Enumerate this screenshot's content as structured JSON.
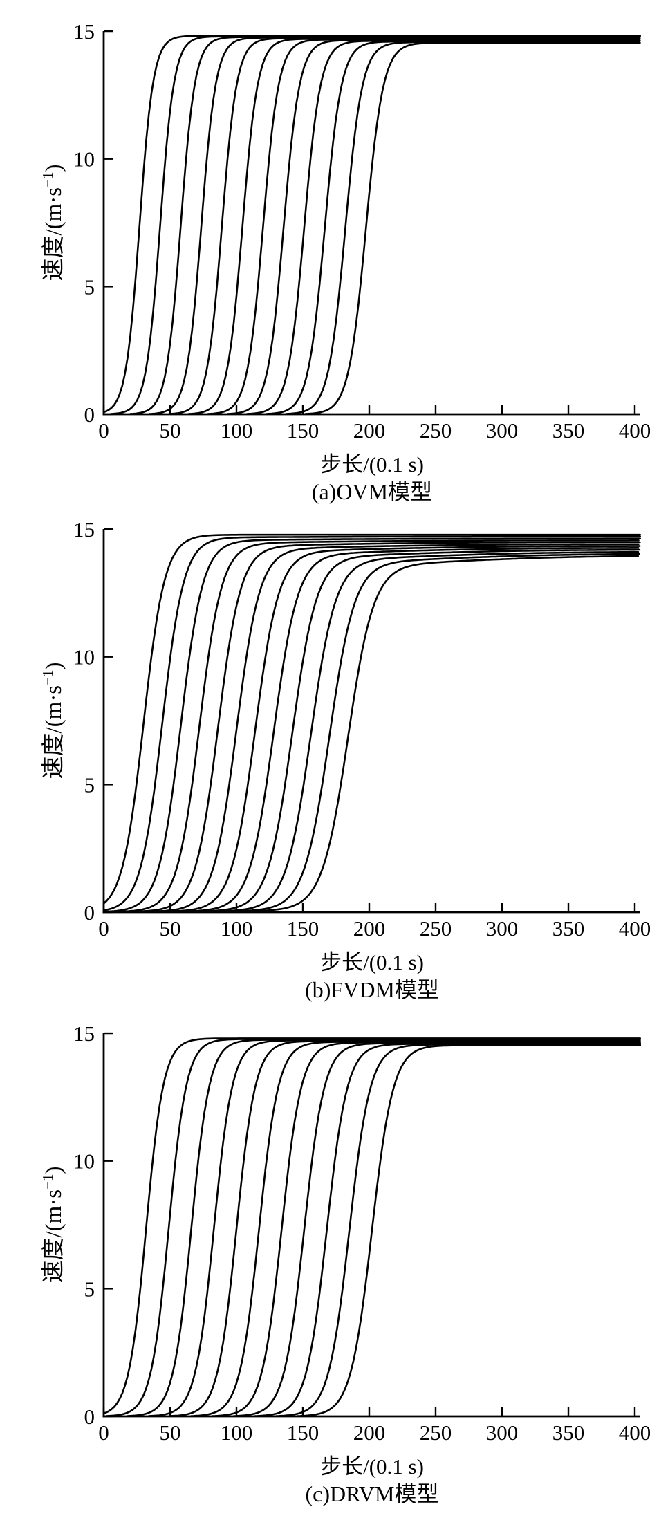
{
  "figure": {
    "background": "#ffffff",
    "n_subplots": 3,
    "line_color": "#000000",
    "axis_color": "#000000"
  },
  "chart_data": [
    {
      "type": "line",
      "caption": "(a)OVM模型",
      "model": "OVM",
      "xlabel": "步长/(0.1 s)",
      "ylabel": "速度/(m·s⁻¹)",
      "ylabel_parts": {
        "pre": "速度/(m·s",
        "sup": "−1",
        "post": ")"
      },
      "xlim": [
        0,
        400
      ],
      "ylim": [
        0,
        15
      ],
      "xticks": [
        0,
        50,
        100,
        150,
        200,
        250,
        300,
        350,
        400
      ],
      "yticks": [
        0,
        5,
        10,
        15
      ],
      "legend": "none",
      "grid": false,
      "n_curves": 12,
      "curve_model": "logistic",
      "terminal_velocity_range": [
        14.55,
        14.82
      ],
      "curves": [
        {
          "center": 27.0,
          "tau": 5.2,
          "plateau": 14.82
        },
        {
          "center": 42.5,
          "tau": 5.32,
          "plateau": 14.795
        },
        {
          "center": 58.0,
          "tau": 5.44,
          "plateau": 14.77
        },
        {
          "center": 73.5,
          "tau": 5.56,
          "plateau": 14.745
        },
        {
          "center": 89.0,
          "tau": 5.68,
          "plateau": 14.72
        },
        {
          "center": 104.5,
          "tau": 5.8,
          "plateau": 14.695
        },
        {
          "center": 120.0,
          "tau": 5.92,
          "plateau": 14.67
        },
        {
          "center": 135.5,
          "tau": 6.04,
          "plateau": 14.645
        },
        {
          "center": 151.0,
          "tau": 6.16,
          "plateau": 14.62
        },
        {
          "center": 166.5,
          "tau": 6.28,
          "plateau": 14.595
        },
        {
          "center": 182.0,
          "tau": 6.4,
          "plateau": 14.57
        },
        {
          "center": 197.5,
          "tau": 6.52,
          "plateau": 14.545
        }
      ]
    },
    {
      "type": "line",
      "caption": "(b)FVDM模型",
      "model": "FVDM",
      "xlabel": "步长/(0.1 s)",
      "ylabel": "速度/(m·s⁻¹)",
      "ylabel_parts": {
        "pre": "速度/(m·s",
        "sup": "−1",
        "post": ")"
      },
      "xlim": [
        0,
        400
      ],
      "ylim": [
        0,
        15
      ],
      "xticks": [
        0,
        50,
        100,
        150,
        200,
        250,
        300,
        350,
        400
      ],
      "yticks": [
        0,
        5,
        10,
        15
      ],
      "legend": "none",
      "grid": false,
      "n_curves": 12,
      "curve_model": "double-logistic",
      "terminal_velocity_range": [
        13.98,
        14.78
      ],
      "slow_offset": 70,
      "slow_tau": 55,
      "curves": [
        {
          "center": 30,
          "tau": 8.0,
          "knee": 14.78,
          "final": 14.78
        },
        {
          "center": 44,
          "tau": 8.15,
          "knee": 14.66,
          "final": 14.71
        },
        {
          "center": 58,
          "tau": 8.3,
          "knee": 14.54,
          "final": 14.63
        },
        {
          "center": 72,
          "tau": 8.45,
          "knee": 14.42,
          "final": 14.56
        },
        {
          "center": 86,
          "tau": 8.6,
          "knee": 14.29,
          "final": 14.49
        },
        {
          "center": 100,
          "tau": 8.75,
          "knee": 14.17,
          "final": 14.41
        },
        {
          "center": 114,
          "tau": 8.9,
          "knee": 14.05,
          "final": 14.34
        },
        {
          "center": 128,
          "tau": 9.05,
          "knee": 13.93,
          "final": 14.27
        },
        {
          "center": 142,
          "tau": 9.2,
          "knee": 13.81,
          "final": 14.2
        },
        {
          "center": 156,
          "tau": 9.35,
          "knee": 13.69,
          "final": 14.12
        },
        {
          "center": 170,
          "tau": 9.5,
          "knee": 13.57,
          "final": 14.05
        },
        {
          "center": 184,
          "tau": 9.65,
          "knee": 13.45,
          "final": 13.98
        }
      ]
    },
    {
      "type": "line",
      "caption": "(c)DRVM模型",
      "model": "DRVM",
      "xlabel": "步长/(0.1 s)",
      "ylabel": "速度/(m·s⁻¹)",
      "ylabel_parts": {
        "pre": "速度/(m·s",
        "sup": "−1",
        "post": ")"
      },
      "xlim": [
        0,
        400
      ],
      "ylim": [
        0,
        15
      ],
      "xticks": [
        0,
        50,
        100,
        150,
        200,
        250,
        300,
        350,
        400
      ],
      "yticks": [
        0,
        5,
        10,
        15
      ],
      "legend": "none",
      "grid": false,
      "n_curves": 11,
      "curve_model": "logistic",
      "terminal_velocity_range": [
        14.53,
        14.8
      ],
      "curves": [
        {
          "center": 32,
          "tau": 6.6,
          "plateau": 14.8
        },
        {
          "center": 49,
          "tau": 6.74,
          "plateau": 14.773
        },
        {
          "center": 66,
          "tau": 6.88,
          "plateau": 14.746
        },
        {
          "center": 83,
          "tau": 7.02,
          "plateau": 14.719
        },
        {
          "center": 100,
          "tau": 7.16,
          "plateau": 14.692
        },
        {
          "center": 117,
          "tau": 7.3,
          "plateau": 14.665
        },
        {
          "center": 134,
          "tau": 7.44,
          "plateau": 14.638
        },
        {
          "center": 151,
          "tau": 7.58,
          "plateau": 14.611
        },
        {
          "center": 168,
          "tau": 7.72,
          "plateau": 14.584
        },
        {
          "center": 185,
          "tau": 7.86,
          "plateau": 14.557
        },
        {
          "center": 202,
          "tau": 8.0,
          "plateau": 14.53
        }
      ]
    }
  ]
}
